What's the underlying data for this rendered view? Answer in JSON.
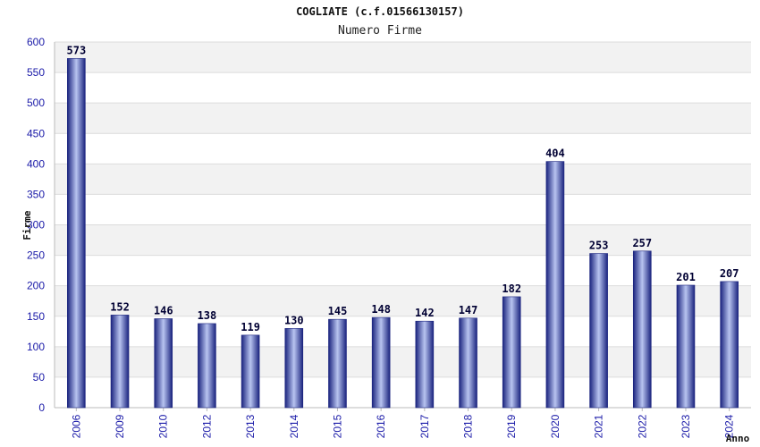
{
  "chart_data": {
    "type": "bar",
    "title": "COGLIATE (c.f.01566130157)",
    "subtitle": "Numero Firme",
    "xlabel": "Anno",
    "ylabel": "Firme",
    "ylim": [
      0,
      600
    ],
    "yticks": [
      0,
      50,
      100,
      150,
      200,
      250,
      300,
      350,
      400,
      450,
      500,
      550,
      600
    ],
    "grid": true,
    "categories": [
      "2006",
      "2009",
      "2010",
      "2012",
      "2013",
      "2014",
      "2015",
      "2016",
      "2017",
      "2018",
      "2019",
      "2020",
      "2021",
      "2022",
      "2023",
      "2024"
    ],
    "values": [
      573,
      152,
      146,
      138,
      119,
      130,
      145,
      148,
      142,
      147,
      182,
      404,
      253,
      257,
      201,
      207
    ],
    "bar_color": "#1a237e",
    "bar_highlight": "#b8c4f0"
  }
}
